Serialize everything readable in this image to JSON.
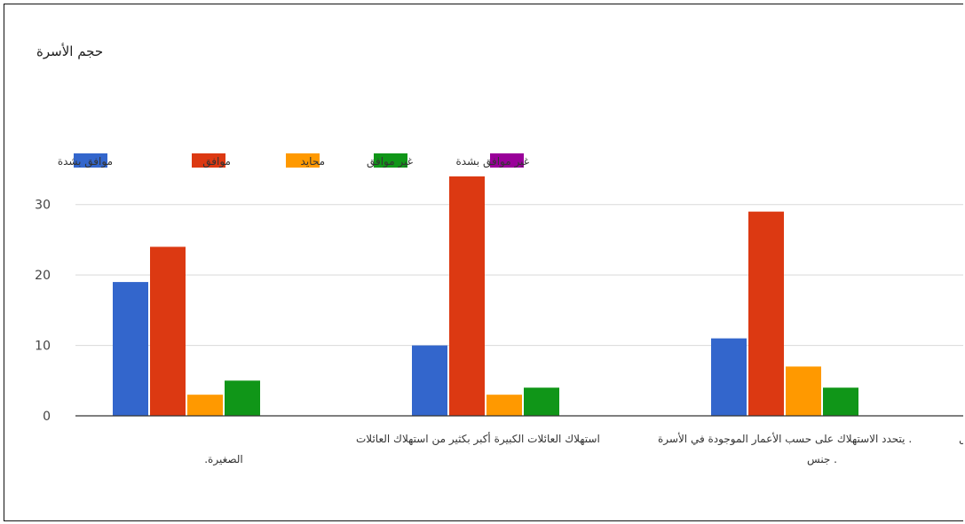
{
  "chart_data": {
    "type": "bar",
    "title": "حجم الأسرة",
    "categories": [
      [
        "استهلاك العائلات الكبيرة أكبر بكثير من استهلاك العائلات",
        "الصغيرة."
      ],
      [
        ". يتحدد الاستهلاك على حسب الأعمار الموجودة في الأسرة",
        ""
      ],
      [
        "يتفاوت استهلاك الإناث و الذكور على حسب متطلبات كل",
        ". جنس"
      ]
    ],
    "series": [
      {
        "name": "موافق بشدة",
        "color": "#3366cc",
        "values": [
          19,
          10,
          11
        ]
      },
      {
        "name": "موافق",
        "color": "#dc3912",
        "values": [
          24,
          34,
          29
        ]
      },
      {
        "name": "محايد",
        "color": "#ff9900",
        "values": [
          3,
          3,
          7
        ]
      },
      {
        "name": "غير موافق",
        "color": "#109618",
        "values": [
          5,
          4,
          4
        ]
      },
      {
        "name": "غير موافق بشدة",
        "color": "#990099",
        "values": [
          0,
          0,
          0
        ]
      }
    ],
    "ylim": [
      0,
      35
    ],
    "yticks": [
      0,
      10,
      20,
      30
    ],
    "grid": true,
    "legend": "top"
  }
}
